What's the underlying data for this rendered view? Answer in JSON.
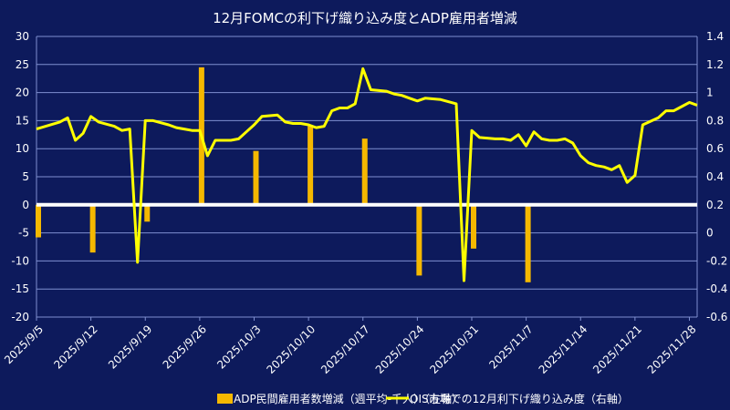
{
  "chart_data": {
    "type": "bar",
    "title": "12月FOMCの利下げ織り込み度とADP雇用者増減",
    "x_labels": [
      "2025/9/5",
      "2025/9/12",
      "2025/9/19",
      "2025/9/26",
      "2025/10/3",
      "2025/10/10",
      "2025/10/17",
      "2025/10/24",
      "2025/10/31",
      "2025/11/7",
      "2025/11/14",
      "2025/11/21",
      "2025/11/28"
    ],
    "x_range": [
      "2025/9/5",
      "2025/11/28"
    ],
    "left_axis": {
      "min": -20,
      "max": 30,
      "step": 5,
      "tick_labels": [
        "-20",
        "-15",
        "-10",
        "-5",
        "0",
        "5",
        "10",
        "15",
        "20",
        "25",
        "30"
      ]
    },
    "right_axis": {
      "min": -0.6,
      "max": 1.4,
      "step": 0.2,
      "tick_labels": [
        "-0.6",
        "-0.4",
        "-0.2",
        "0",
        "0.2",
        "0.4",
        "0.6",
        "0.8",
        "1",
        "1.2",
        "1.4"
      ]
    },
    "grid": true,
    "legend_position": "bottom",
    "series": [
      {
        "name": "ADP民間雇用者数増減（週平均-千人）（左軸）",
        "type": "bar",
        "axis": "left",
        "color": "#f5b800",
        "points": [
          {
            "date": "2025-09-05",
            "value": -5.8
          },
          {
            "date": "2025-09-12",
            "value": -8.5
          },
          {
            "date": "2025-09-19",
            "value": -3.0
          },
          {
            "date": "2025-09-26",
            "value": 24.5
          },
          {
            "date": "2025-10-03",
            "value": 9.6
          },
          {
            "date": "2025-10-10",
            "value": 14.0
          },
          {
            "date": "2025-10-17",
            "value": 11.8
          },
          {
            "date": "2025-10-24",
            "value": -12.6
          },
          {
            "date": "2025-10-31",
            "value": -7.8
          },
          {
            "date": "2025-11-07",
            "value": -13.8
          }
        ]
      },
      {
        "name": "OIS市場での12月利下げ織り込み度（右軸）",
        "type": "line",
        "axis": "right",
        "color": "#ffff00",
        "points": [
          {
            "date": "2025-09-05",
            "value": 0.74
          },
          {
            "date": "2025-09-08",
            "value": 0.79
          },
          {
            "date": "2025-09-09",
            "value": 0.82
          },
          {
            "date": "2025-09-10",
            "value": 0.66
          },
          {
            "date": "2025-09-11",
            "value": 0.71
          },
          {
            "date": "2025-09-12",
            "value": 0.83
          },
          {
            "date": "2025-09-13",
            "value": 0.79
          },
          {
            "date": "2025-09-15",
            "value": 0.76
          },
          {
            "date": "2025-09-16",
            "value": 0.73
          },
          {
            "date": "2025-09-17",
            "value": 0.74
          },
          {
            "date": "2025-09-18",
            "value": -0.21
          },
          {
            "date": "2025-09-19",
            "value": 0.8
          },
          {
            "date": "2025-09-20",
            "value": 0.8
          },
          {
            "date": "2025-09-22",
            "value": 0.77
          },
          {
            "date": "2025-09-23",
            "value": 0.75
          },
          {
            "date": "2025-09-24",
            "value": 0.74
          },
          {
            "date": "2025-09-25",
            "value": 0.73
          },
          {
            "date": "2025-09-26",
            "value": 0.73
          },
          {
            "date": "2025-09-27",
            "value": 0.55
          },
          {
            "date": "2025-09-28",
            "value": 0.66
          },
          {
            "date": "2025-09-30",
            "value": 0.66
          },
          {
            "date": "2025-10-01",
            "value": 0.67
          },
          {
            "date": "2025-10-02",
            "value": 0.72
          },
          {
            "date": "2025-10-03",
            "value": 0.77
          },
          {
            "date": "2025-10-04",
            "value": 0.83
          },
          {
            "date": "2025-10-06",
            "value": 0.84
          },
          {
            "date": "2025-10-07",
            "value": 0.79
          },
          {
            "date": "2025-10-08",
            "value": 0.78
          },
          {
            "date": "2025-10-09",
            "value": 0.78
          },
          {
            "date": "2025-10-10",
            "value": 0.77
          },
          {
            "date": "2025-10-11",
            "value": 0.75
          },
          {
            "date": "2025-10-12",
            "value": 0.76
          },
          {
            "date": "2025-10-13",
            "value": 0.87
          },
          {
            "date": "2025-10-14",
            "value": 0.89
          },
          {
            "date": "2025-10-15",
            "value": 0.89
          },
          {
            "date": "2025-10-16",
            "value": 0.92
          },
          {
            "date": "2025-10-17",
            "value": 1.17
          },
          {
            "date": "2025-10-18",
            "value": 1.02
          },
          {
            "date": "2025-10-20",
            "value": 1.01
          },
          {
            "date": "2025-10-21",
            "value": 0.99
          },
          {
            "date": "2025-10-22",
            "value": 0.98
          },
          {
            "date": "2025-10-23",
            "value": 0.96
          },
          {
            "date": "2025-10-24",
            "value": 0.94
          },
          {
            "date": "2025-10-25",
            "value": 0.96
          },
          {
            "date": "2025-10-27",
            "value": 0.95
          },
          {
            "date": "2025-10-29",
            "value": 0.92
          },
          {
            "date": "2025-10-30",
            "value": -0.34
          },
          {
            "date": "2025-10-31",
            "value": 0.73
          },
          {
            "date": "2025-11-01",
            "value": 0.68
          },
          {
            "date": "2025-11-03",
            "value": 0.67
          },
          {
            "date": "2025-11-04",
            "value": 0.67
          },
          {
            "date": "2025-11-05",
            "value": 0.66
          },
          {
            "date": "2025-11-06",
            "value": 0.7
          },
          {
            "date": "2025-11-07",
            "value": 0.62
          },
          {
            "date": "2025-11-08",
            "value": 0.72
          },
          {
            "date": "2025-11-09",
            "value": 0.67
          },
          {
            "date": "2025-11-10",
            "value": 0.66
          },
          {
            "date": "2025-11-11",
            "value": 0.66
          },
          {
            "date": "2025-11-12",
            "value": 0.67
          },
          {
            "date": "2025-11-13",
            "value": 0.64
          },
          {
            "date": "2025-11-14",
            "value": 0.55
          },
          {
            "date": "2025-11-15",
            "value": 0.5
          },
          {
            "date": "2025-11-16",
            "value": 0.48
          },
          {
            "date": "2025-11-17",
            "value": 0.47
          },
          {
            "date": "2025-11-18",
            "value": 0.45
          },
          {
            "date": "2025-11-19",
            "value": 0.48
          },
          {
            "date": "2025-11-20",
            "value": 0.36
          },
          {
            "date": "2025-11-21",
            "value": 0.41
          },
          {
            "date": "2025-11-22",
            "value": 0.77
          },
          {
            "date": "2025-11-24",
            "value": 0.82
          },
          {
            "date": "2025-11-25",
            "value": 0.87
          },
          {
            "date": "2025-11-26",
            "value": 0.87
          },
          {
            "date": "2025-11-27",
            "value": 0.9
          },
          {
            "date": "2025-11-28",
            "value": 0.93
          },
          {
            "date": "2025-11-29",
            "value": 0.91
          }
        ]
      }
    ]
  }
}
